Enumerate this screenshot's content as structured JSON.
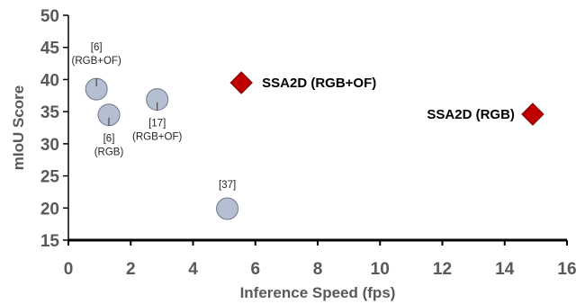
{
  "chart_data": {
    "type": "scatter",
    "xlabel": "Inference Speed (fps)",
    "ylabel": "mIoU Score",
    "xlim": [
      0,
      16
    ],
    "ylim": [
      15,
      50
    ],
    "x_ticks": [
      0,
      2,
      4,
      6,
      8,
      10,
      12,
      14,
      16
    ],
    "y_ticks": [
      15,
      20,
      25,
      30,
      35,
      40,
      45,
      50
    ],
    "grid": false,
    "series": [
      {
        "marker": "circle",
        "color": "#b4bfd2",
        "points": [
          {
            "x": 0.9,
            "y": 38.5,
            "label": "[6]\n(RGB+OF)"
          },
          {
            "x": 1.3,
            "y": 34.5,
            "label": "[6]\n(RGB)"
          },
          {
            "x": 2.85,
            "y": 36.9,
            "label": "[17]\n(RGB+OF)"
          },
          {
            "x": 5.1,
            "y": 19.9,
            "label": "[37]"
          }
        ]
      },
      {
        "marker": "diamond",
        "color": "#c00000",
        "points": [
          {
            "x": 5.55,
            "y": 39.5,
            "label": "SSA2D (RGB+OF)"
          },
          {
            "x": 14.9,
            "y": 34.6,
            "label": "SSA2D (RGB)"
          }
        ]
      }
    ]
  }
}
